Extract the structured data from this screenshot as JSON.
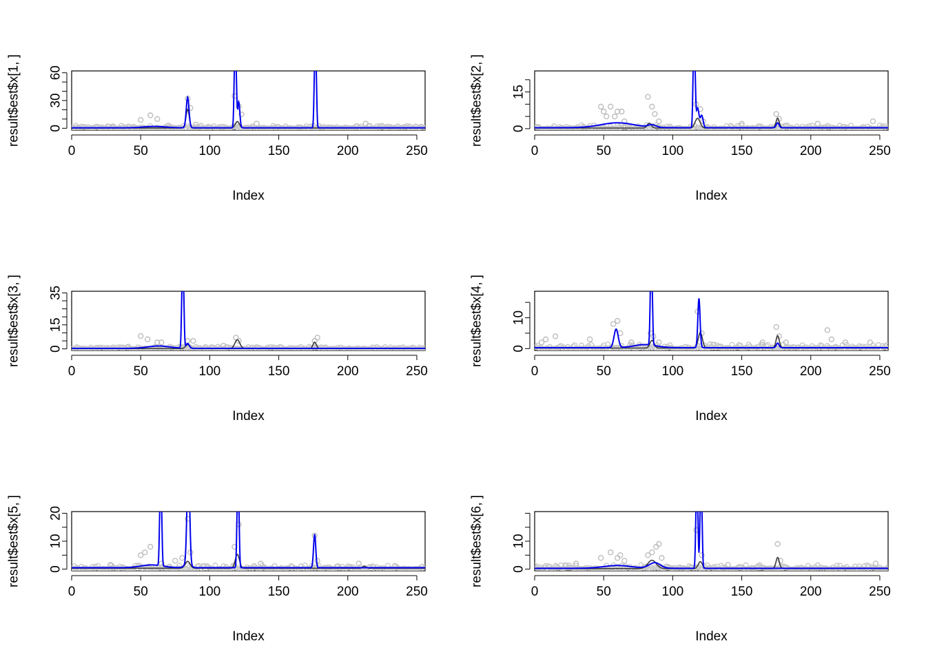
{
  "chart_data": [
    {
      "type": "line",
      "ylabel": "result$est$x[1, ]",
      "xlabel": "Index",
      "xlim": [
        0,
        256
      ],
      "ylim": [
        -2,
        62
      ],
      "xticks": [
        0,
        50,
        100,
        150,
        200,
        250
      ],
      "yticks": [
        0,
        30,
        60
      ],
      "yminor": [
        10,
        20,
        40,
        50
      ],
      "baseline": 0.5,
      "noise_max": 3,
      "points": [
        [
          50,
          9
        ],
        [
          57,
          14
        ],
        [
          62,
          10
        ],
        [
          84,
          32
        ],
        [
          86,
          22
        ],
        [
          90,
          4
        ],
        [
          118,
          35
        ],
        [
          121,
          24
        ],
        [
          123,
          15
        ],
        [
          134,
          5
        ],
        [
          213,
          5
        ],
        [
          30,
          2
        ],
        [
          70,
          3
        ]
      ],
      "black_peaks": [
        [
          84,
          1.2,
          20
        ],
        [
          120,
          1.5,
          7
        ]
      ],
      "blue_spikes": [
        [
          84,
          1.0,
          33
        ],
        [
          118,
          0.5,
          62
        ],
        [
          119,
          0.5,
          62
        ],
        [
          121,
          0.8,
          28
        ],
        [
          176,
          0.5,
          62
        ],
        [
          177,
          0.5,
          62
        ]
      ],
      "blue_bumps": [
        [
          60,
          8,
          1.5
        ]
      ]
    },
    {
      "type": "line",
      "ylabel": "result$est$x[2, ]",
      "xlabel": "Index",
      "xlim": [
        0,
        256
      ],
      "ylim": [
        -0.6,
        23.6
      ],
      "xticks": [
        0,
        50,
        100,
        150,
        200,
        250
      ],
      "yticks": [
        0,
        15
      ],
      "yminor": [
        5,
        10,
        20
      ],
      "baseline": 0.4,
      "noise_max": 1.5,
      "points": [
        [
          48,
          9
        ],
        [
          50,
          7
        ],
        [
          52,
          5
        ],
        [
          55,
          9
        ],
        [
          58,
          5
        ],
        [
          60,
          7
        ],
        [
          63,
          7
        ],
        [
          65,
          3
        ],
        [
          82,
          13
        ],
        [
          85,
          9
        ],
        [
          87,
          6
        ],
        [
          90,
          3
        ],
        [
          117,
          10
        ],
        [
          120,
          8
        ],
        [
          122,
          3
        ],
        [
          175,
          6
        ],
        [
          177,
          4
        ],
        [
          245,
          3
        ],
        [
          150,
          2
        ],
        [
          205,
          2
        ]
      ],
      "black_peaks": [
        [
          118,
          1.8,
          4
        ],
        [
          176,
          1.2,
          4
        ],
        [
          83,
          1.5,
          2
        ]
      ],
      "blue_spikes": [
        [
          115,
          0.5,
          24
        ],
        [
          116,
          0.5,
          24
        ],
        [
          118,
          1.0,
          8
        ],
        [
          121,
          1.0,
          5
        ],
        [
          176,
          1.0,
          2
        ]
      ],
      "blue_bumps": [
        [
          60,
          12,
          2
        ],
        [
          85,
          3,
          1
        ]
      ]
    },
    {
      "type": "line",
      "ylabel": "result$est$x[3, ]",
      "xlabel": "Index",
      "xlim": [
        0,
        256
      ],
      "ylim": [
        -1,
        36
      ],
      "xticks": [
        0,
        50,
        100,
        150,
        200,
        250
      ],
      "yticks": [
        0,
        15,
        35
      ],
      "yminor": [
        5,
        10,
        20,
        25,
        30
      ],
      "baseline": 0.3,
      "noise_max": 1.5,
      "points": [
        [
          50,
          8
        ],
        [
          55,
          6
        ],
        [
          62,
          4
        ],
        [
          65,
          4
        ],
        [
          84,
          5
        ],
        [
          88,
          5
        ],
        [
          119,
          7
        ],
        [
          121,
          5
        ],
        [
          176,
          5
        ],
        [
          178,
          7
        ],
        [
          110,
          2
        ]
      ],
      "black_peaks": [
        [
          120,
          1.8,
          5.5
        ],
        [
          176,
          1.2,
          4
        ],
        [
          84,
          1.5,
          2.5
        ]
      ],
      "blue_spikes": [
        [
          80,
          0.5,
          36
        ],
        [
          81,
          0.5,
          36
        ],
        [
          84,
          1.2,
          3
        ]
      ],
      "blue_bumps": [
        [
          63,
          8,
          1.5
        ]
      ]
    },
    {
      "type": "line",
      "ylabel": "result$est$x[4, ]",
      "xlabel": "Index",
      "xlim": [
        0,
        256
      ],
      "ylim": [
        -0.6,
        18.6
      ],
      "xticks": [
        0,
        50,
        100,
        150,
        200,
        250
      ],
      "yticks": [
        0,
        10
      ],
      "yminor": [
        5,
        15
      ],
      "baseline": 0.3,
      "noise_max": 1.5,
      "points": [
        [
          5,
          2
        ],
        [
          8,
          3
        ],
        [
          15,
          4
        ],
        [
          40,
          3
        ],
        [
          57,
          8
        ],
        [
          60,
          9
        ],
        [
          62,
          5
        ],
        [
          70,
          2
        ],
        [
          84,
          5
        ],
        [
          86,
          4
        ],
        [
          90,
          2
        ],
        [
          118,
          12
        ],
        [
          121,
          5
        ],
        [
          175,
          7
        ],
        [
          177,
          4
        ],
        [
          182,
          2
        ],
        [
          212,
          6
        ],
        [
          215,
          3
        ],
        [
          225,
          2
        ],
        [
          243,
          2
        ],
        [
          165,
          2
        ]
      ],
      "black_peaks": [
        [
          120,
          1.5,
          5
        ],
        [
          176,
          1.2,
          4
        ],
        [
          85,
          1.5,
          2.5
        ]
      ],
      "blue_spikes": [
        [
          84,
          0.5,
          18.6
        ],
        [
          85,
          0.5,
          18.6
        ],
        [
          119,
          0.8,
          16
        ],
        [
          176,
          1.0,
          1.5
        ]
      ],
      "blue_bumps": [
        [
          59,
          1.5,
          6
        ],
        [
          80,
          8,
          1
        ]
      ]
    },
    {
      "type": "line",
      "ylabel": "result$est$x[5, ]",
      "xlabel": "Index",
      "xlim": [
        0,
        256
      ],
      "ylim": [
        -0.6,
        20.6
      ],
      "xticks": [
        0,
        50,
        100,
        150,
        200,
        250
      ],
      "yticks": [
        0,
        10,
        20
      ],
      "yminor": [
        5,
        15
      ],
      "baseline": 0.5,
      "noise_max": 1.5,
      "points": [
        [
          50,
          5
        ],
        [
          53,
          6
        ],
        [
          57,
          8
        ],
        [
          65,
          2
        ],
        [
          75,
          3
        ],
        [
          80,
          4
        ],
        [
          84,
          18
        ],
        [
          86,
          6
        ],
        [
          118,
          8
        ],
        [
          121,
          16
        ],
        [
          137,
          2
        ],
        [
          176,
          12
        ],
        [
          178,
          3
        ],
        [
          208,
          2
        ],
        [
          28,
          1.5
        ]
      ],
      "black_peaks": [
        [
          84,
          1.8,
          2.5
        ],
        [
          120,
          1.5,
          5
        ],
        [
          212,
          1.2,
          0.8
        ]
      ],
      "blue_spikes": [
        [
          64,
          0.5,
          20.6
        ],
        [
          65,
          0.5,
          20.6
        ],
        [
          84,
          0.8,
          20.6
        ],
        [
          85,
          0.8,
          20.6
        ],
        [
          120,
          0.5,
          20.6
        ],
        [
          121,
          0.5,
          20.6
        ],
        [
          176,
          0.8,
          12
        ]
      ],
      "blue_bumps": [
        [
          58,
          8,
          1
        ],
        [
          84,
          2,
          2
        ]
      ]
    },
    {
      "type": "line",
      "ylabel": "result$est$x[6, ]",
      "xlabel": "Index",
      "xlim": [
        0,
        256
      ],
      "ylim": [
        -0.6,
        20.6
      ],
      "xticks": [
        0,
        50,
        100,
        150,
        200,
        250
      ],
      "yticks": [
        0,
        10
      ],
      "yminor": [
        5,
        15,
        20
      ],
      "baseline": 0.3,
      "noise_max": 1.5,
      "points": [
        [
          48,
          4
        ],
        [
          55,
          6
        ],
        [
          60,
          4
        ],
        [
          62,
          5
        ],
        [
          65,
          3
        ],
        [
          82,
          5
        ],
        [
          85,
          6
        ],
        [
          88,
          8
        ],
        [
          90,
          9
        ],
        [
          92,
          4
        ],
        [
          117,
          14
        ],
        [
          121,
          5
        ],
        [
          176,
          9
        ],
        [
          178,
          3
        ],
        [
          247,
          2
        ],
        [
          140,
          1.5
        ],
        [
          30,
          2
        ]
      ],
      "black_peaks": [
        [
          85,
          3,
          3
        ],
        [
          176,
          1.2,
          4
        ],
        [
          120,
          1.5,
          2.5
        ]
      ],
      "blue_spikes": [
        [
          117,
          0.5,
          20.6
        ],
        [
          118,
          0.5,
          20.6
        ],
        [
          120,
          0.5,
          20.6
        ],
        [
          121,
          0.5,
          20.6
        ]
      ],
      "blue_bumps": [
        [
          60,
          10,
          1
        ],
        [
          87,
          4,
          2
        ]
      ]
    }
  ]
}
